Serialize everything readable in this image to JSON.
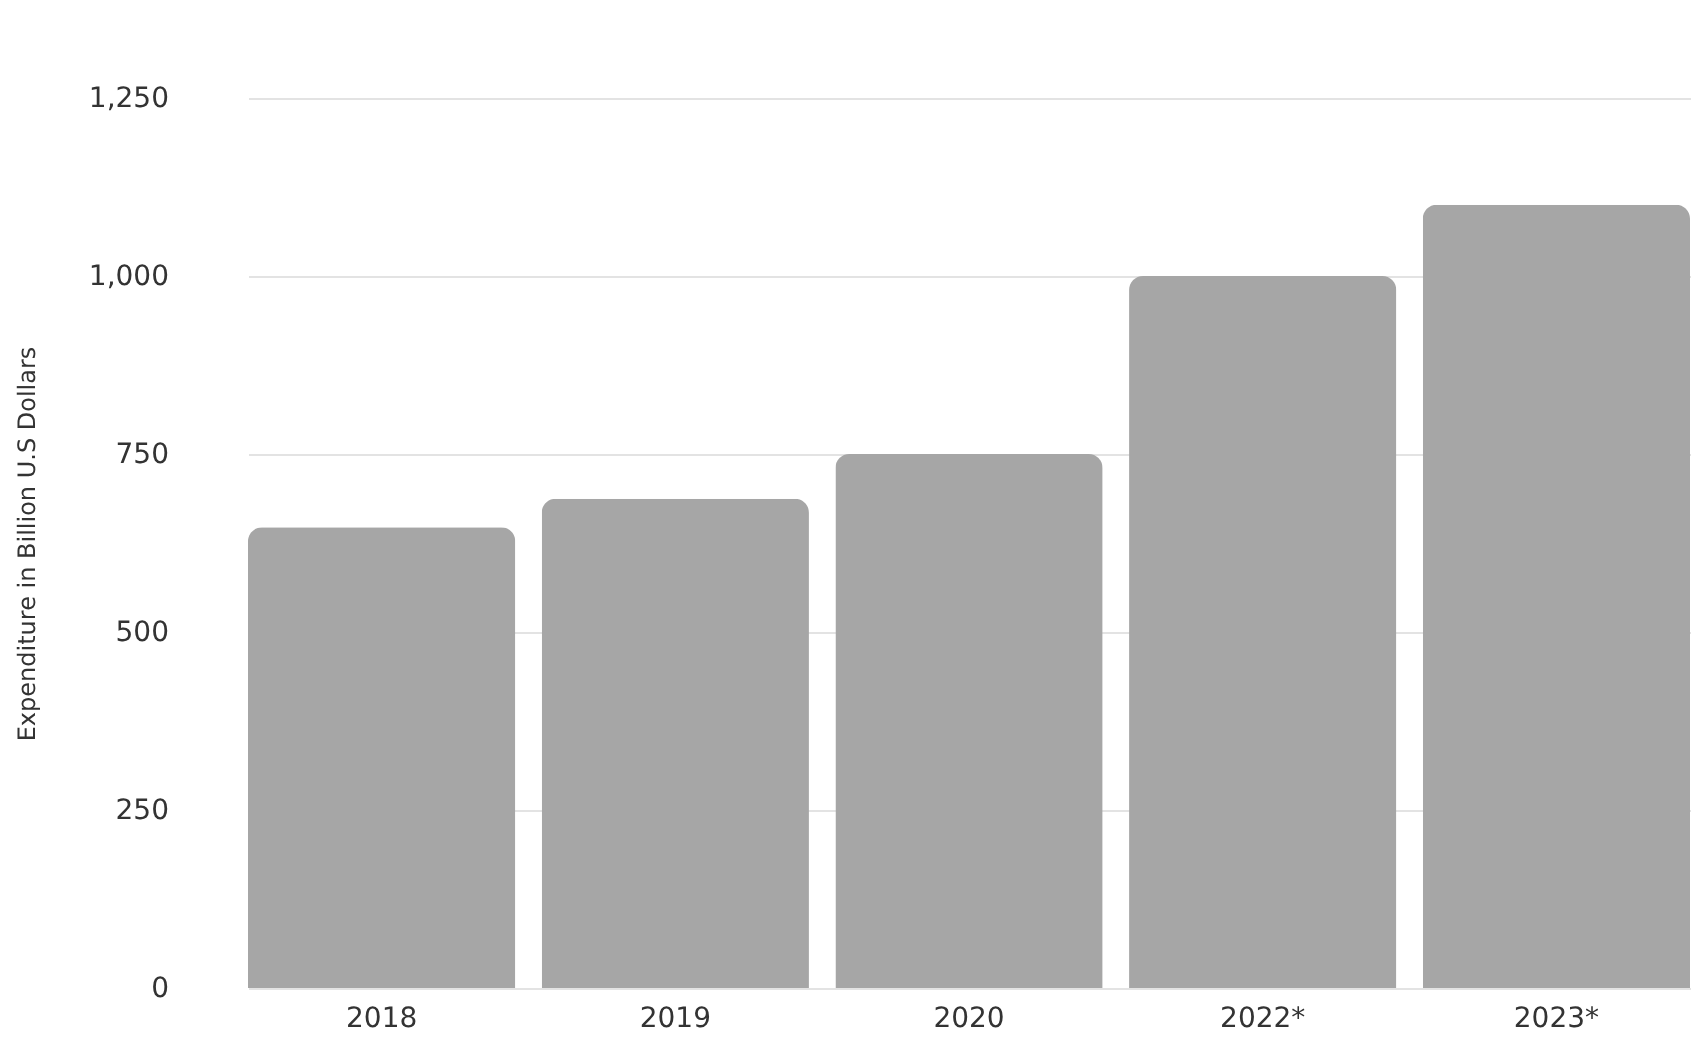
{
  "chart_data": {
    "type": "bar",
    "ylabel": "Expenditure in Billion U.S Dollars",
    "categories": [
      "2018",
      "2019",
      "2020",
      "2022*",
      "2023*"
    ],
    "values": [
      647,
      687,
      750,
      1000,
      1100
    ],
    "color": "#a6a6a6",
    "ylim": [
      0,
      1250
    ],
    "yticks": [
      0,
      250,
      500,
      750,
      {
        "value": 1000,
        "label": "1,000"
      },
      {
        "value": 1250,
        "label": "1,250"
      }
    ],
    "grid": "y"
  }
}
